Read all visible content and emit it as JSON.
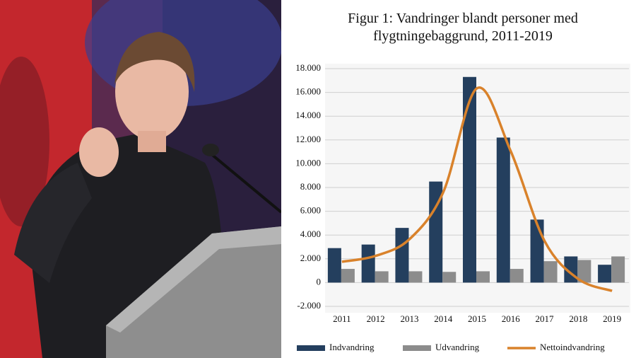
{
  "chart_data": {
    "type": "bar-line",
    "title": "Figur 1: Vandringer blandt personer med flygtningebaggrund, 2011-2019",
    "categories": [
      "2011",
      "2012",
      "2013",
      "2014",
      "2015",
      "2016",
      "2017",
      "2018",
      "2019"
    ],
    "series": [
      {
        "name": "Indvandring",
        "type": "bar",
        "color": "#243f5e",
        "values": [
          2900,
          3200,
          4600,
          8500,
          17300,
          12200,
          5300,
          2200,
          1500
        ]
      },
      {
        "name": "Udvandring",
        "type": "bar",
        "color": "#8c8c8c",
        "values": [
          1150,
          950,
          950,
          900,
          950,
          1150,
          1800,
          1900,
          2200
        ]
      },
      {
        "name": "Nettoindvandring",
        "type": "line",
        "color": "#d9822b",
        "values": [
          1750,
          2250,
          3650,
          7600,
          16350,
          11050,
          3500,
          300,
          -700
        ]
      }
    ],
    "ylim": [
      -2000,
      18000
    ],
    "yticks": [
      {
        "value": -2000,
        "label": "-2.000"
      },
      0,
      {
        "value": 2000,
        "label": "2.000"
      },
      {
        "value": 4000,
        "label": "4.000"
      },
      {
        "value": 6000,
        "label": "6.000"
      },
      {
        "value": 8000,
        "label": "8.000"
      },
      {
        "value": 10000,
        "label": "10.000"
      },
      {
        "value": 12000,
        "label": "12.000"
      },
      {
        "value": 14000,
        "label": "14.000"
      },
      {
        "value": 16000,
        "label": "16.000"
      },
      {
        "value": 18000,
        "label": "18.000"
      }
    ],
    "grid": true,
    "legend": "bottom"
  }
}
